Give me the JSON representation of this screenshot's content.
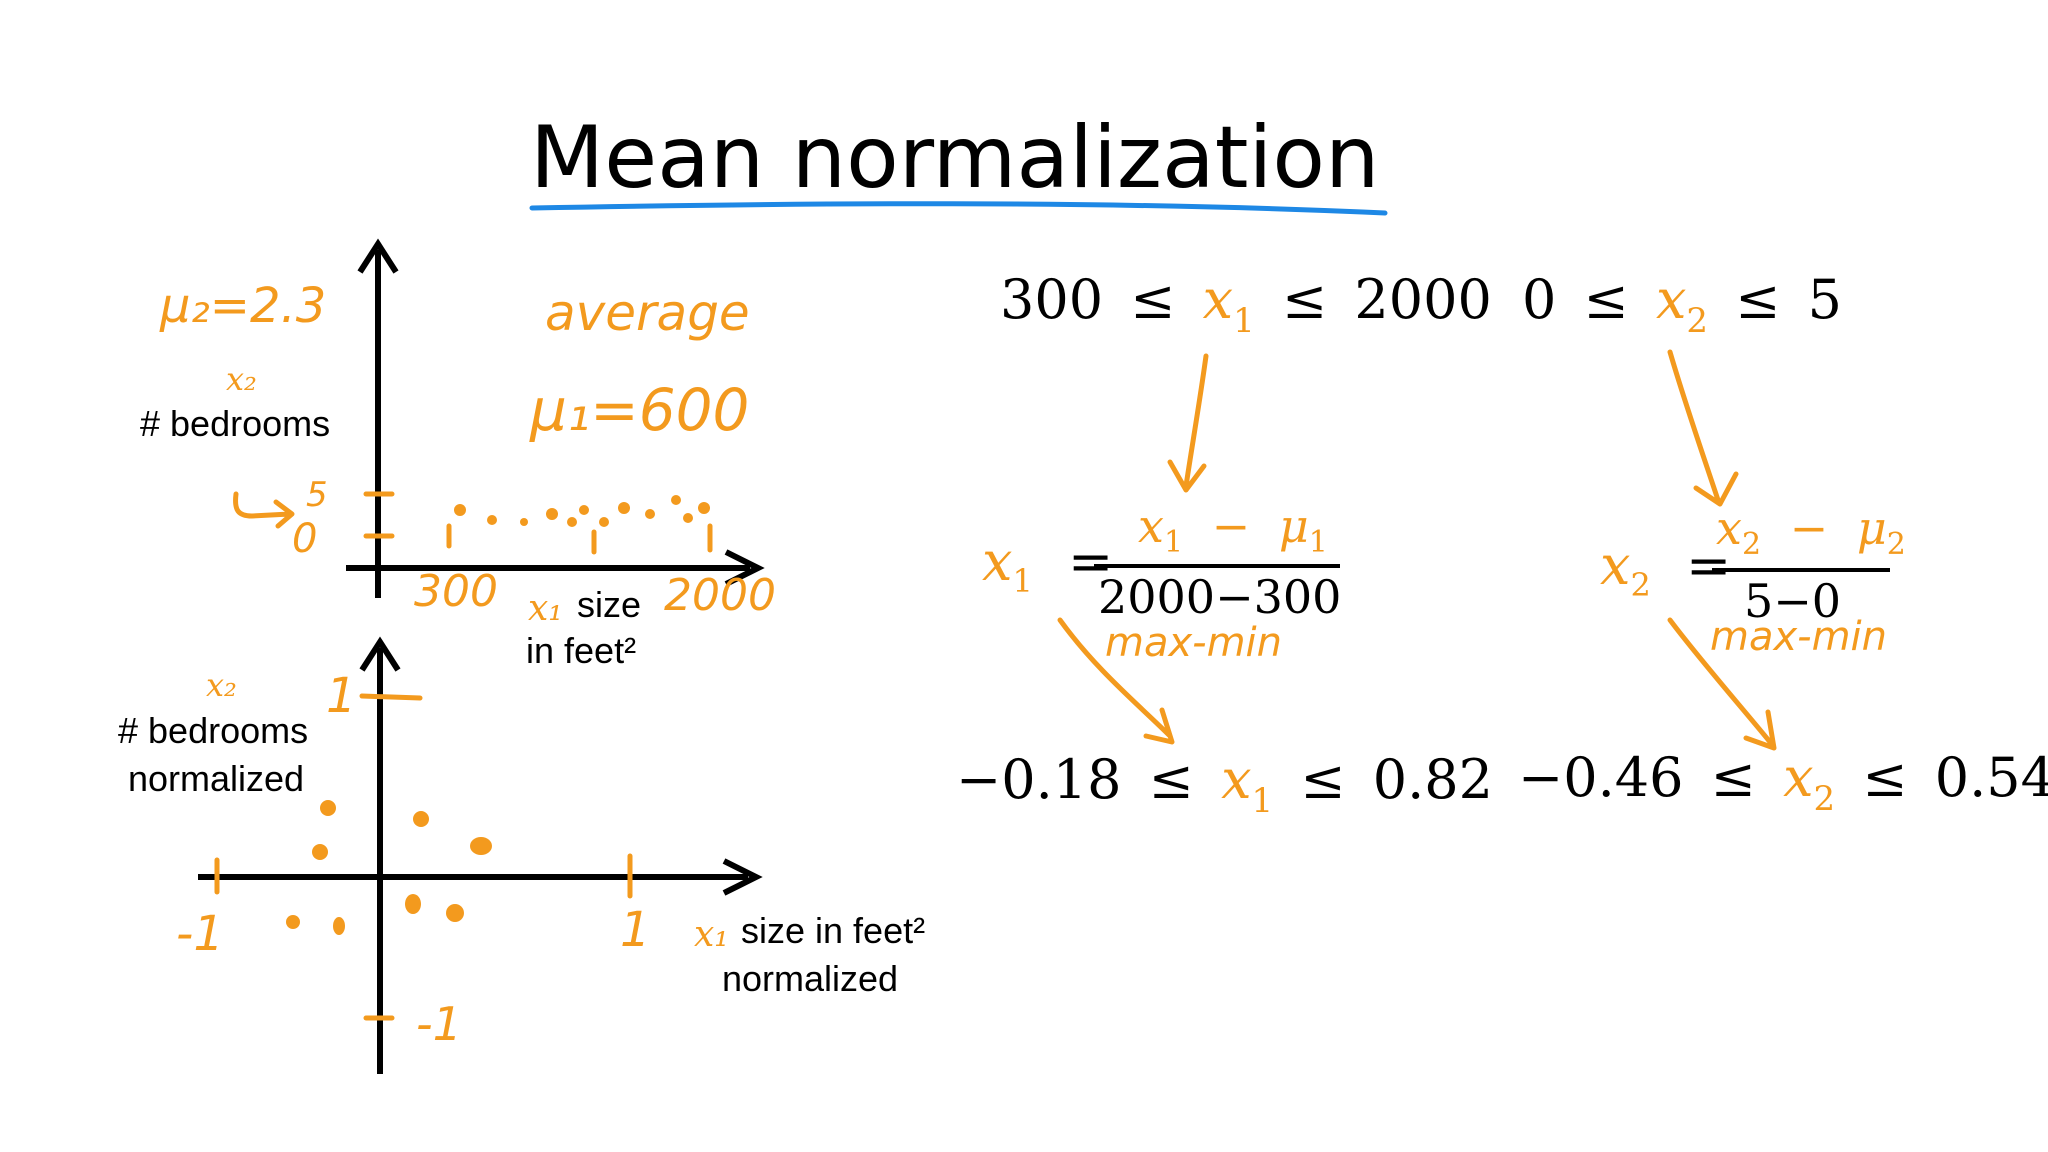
{
  "title": "Mean normalization",
  "colors": {
    "ink": "#f39a1e",
    "underline": "#1e88e5",
    "text": "#000000"
  },
  "top_plot": {
    "mu2": "μ₂=2.3",
    "x2": "x₂",
    "y_label": "# bedrooms",
    "note": "average",
    "mu1": "μ₁=600",
    "tick_y_top": "5",
    "tick_y_bottom": "0",
    "tick_x_left": "300",
    "tick_x_right": "2000",
    "x1": "x₁",
    "x_label_1": "size",
    "x_label_2": "in feet²"
  },
  "bottom_plot": {
    "x2": "x₂",
    "y_label_1": "# bedrooms",
    "y_label_2": "normalized",
    "tick_y_top": "1",
    "tick_y_bottom": "-1",
    "tick_x_left": "-1",
    "tick_x_right": "1",
    "x1": "x₁",
    "x_label_1": "size in feet²",
    "x_label_2": "normalized"
  },
  "range_x1": {
    "low": "300",
    "leq": "≤",
    "var": "x",
    "sub": "1",
    "high": "2000"
  },
  "range_x2": {
    "low": "0",
    "leq": "≤",
    "var": "x",
    "sub": "2",
    "high": "5"
  },
  "formula_x1": {
    "lhs_var": "x",
    "lhs_sub": "1",
    "equals": "=",
    "num_var": "x",
    "num_sub": "1",
    "minus": "−",
    "num_mu": "μ",
    "num_mu_sub": "1",
    "denominator": "2000−300",
    "note": "max-min"
  },
  "formula_x2": {
    "lhs_var": "x",
    "lhs_sub": "2",
    "equals": "=",
    "num_var": "x",
    "num_sub": "2",
    "minus": "−",
    "num_mu": "μ",
    "num_mu_sub": "2",
    "denominator": "5−0",
    "note": "max-min"
  },
  "result_x1": {
    "low": "−0.18",
    "leq": "≤",
    "var": "x",
    "sub": "1",
    "high": "0.82"
  },
  "result_x2": {
    "low": "−0.46",
    "leq": "≤",
    "var": "x",
    "sub": "2",
    "high": "0.54"
  }
}
